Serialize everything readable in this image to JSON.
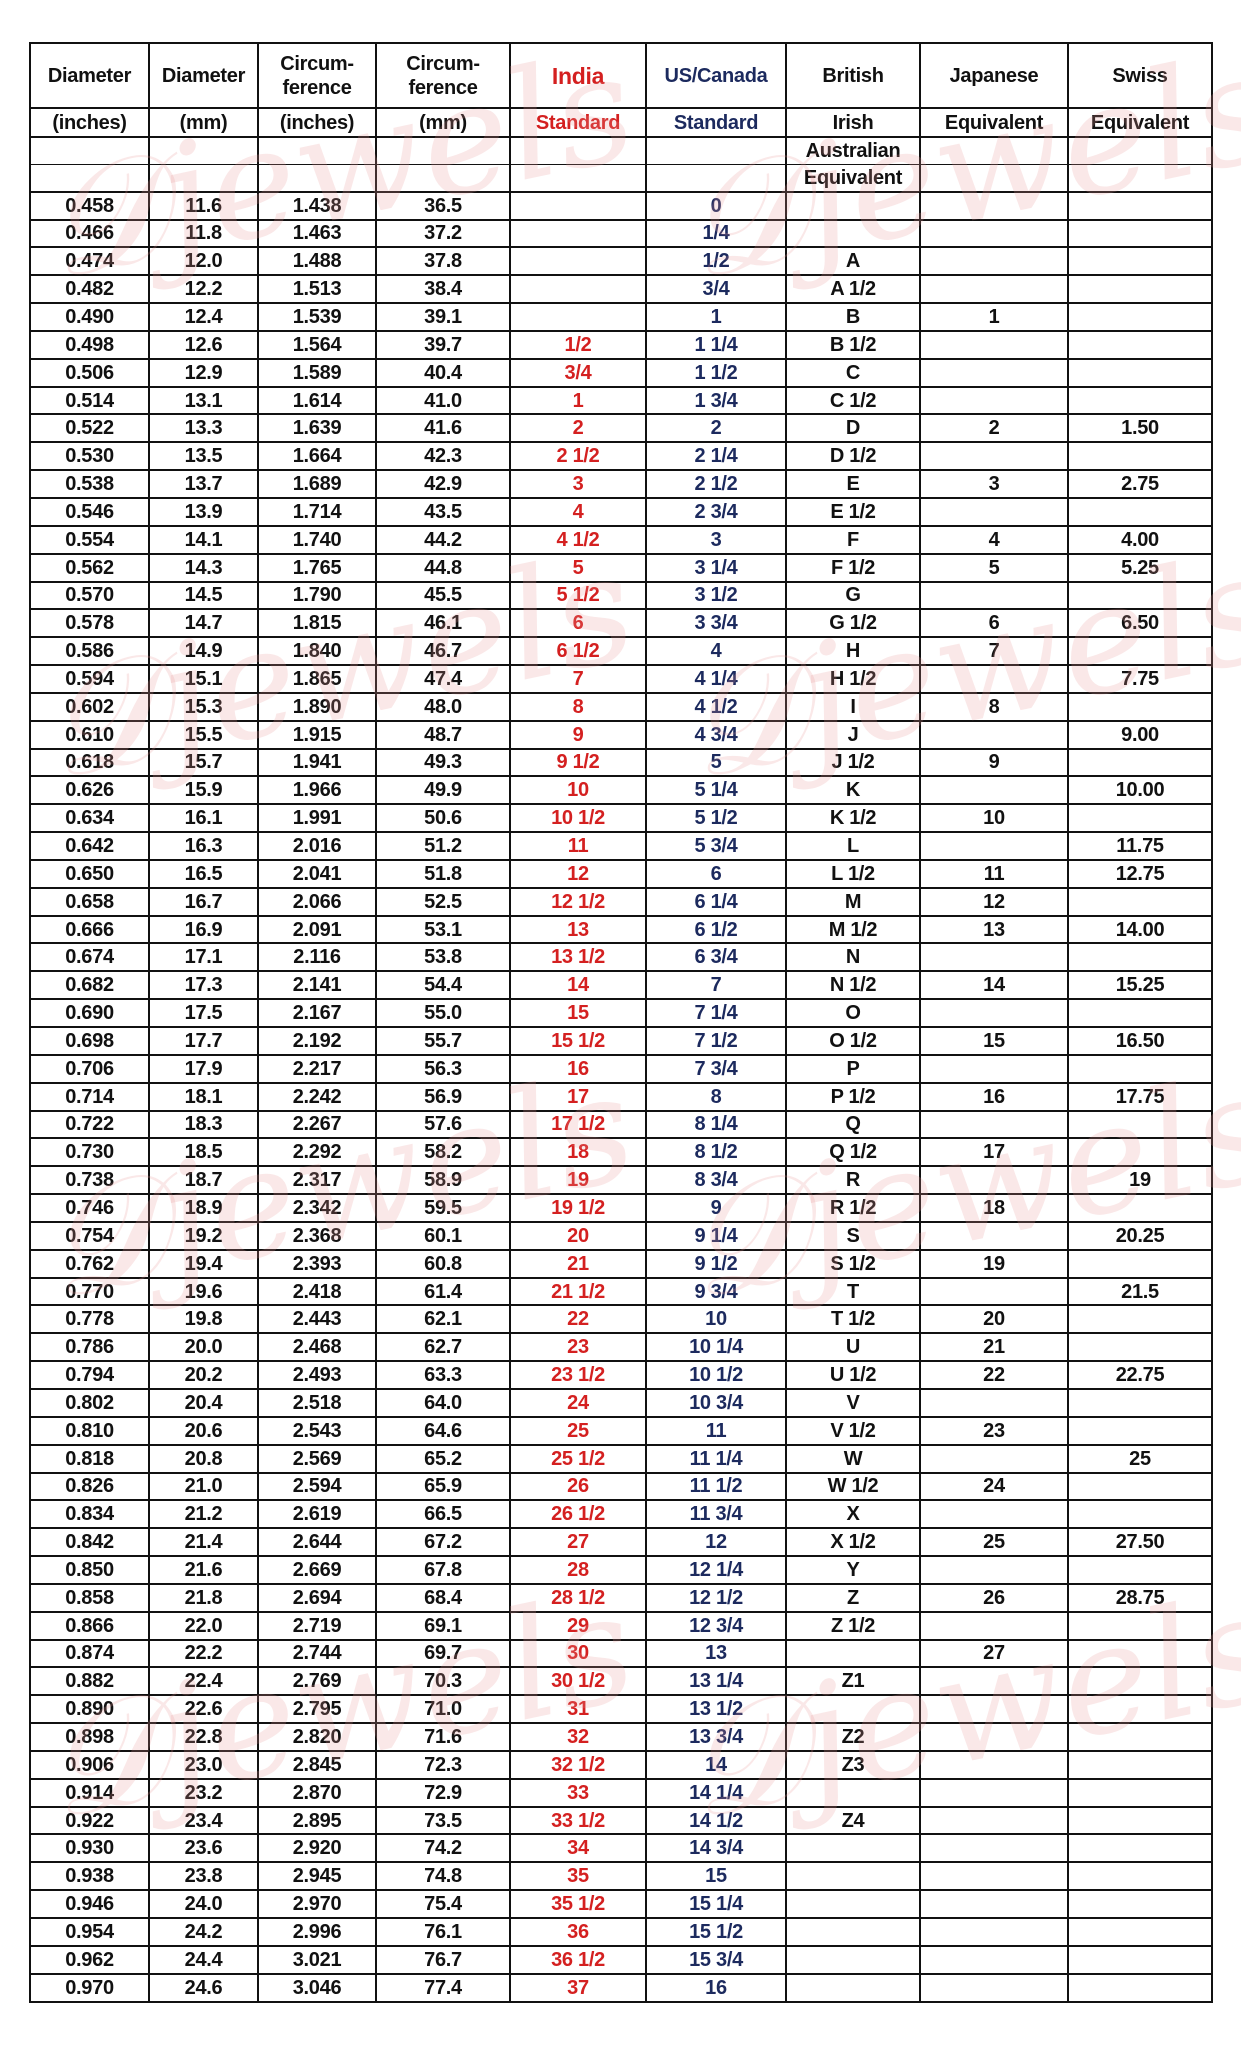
{
  "watermark": "Djewels",
  "colors": {
    "india": "#d42020",
    "us_canada": "#1c2a5e",
    "text": "#111111"
  },
  "headers": {
    "row1": [
      "Diameter",
      "Diameter",
      "Circum-\nference",
      "Circum-\nference",
      "India",
      "US/Canada",
      "British",
      "Japanese",
      "Swiss"
    ],
    "row2": [
      "(inches)",
      "(mm)",
      "(inches)",
      "(mm)",
      "Standard",
      "Standard",
      "Irish",
      "Equivalent",
      "Equivalent"
    ],
    "row3": [
      "",
      "",
      "",
      "",
      "",
      "",
      "Australian",
      "",
      ""
    ],
    "row4": [
      "",
      "",
      "",
      "",
      "",
      "",
      "Equivalent",
      "",
      ""
    ]
  },
  "rows": [
    [
      "0.458",
      "11.6",
      "1.438",
      "36.5",
      "",
      "0",
      "",
      "",
      ""
    ],
    [
      "0.466",
      "11.8",
      "1.463",
      "37.2",
      "",
      "1/4",
      "",
      "",
      ""
    ],
    [
      "0.474",
      "12.0",
      "1.488",
      "37.8",
      "",
      "1/2",
      "A",
      "",
      ""
    ],
    [
      "0.482",
      "12.2",
      "1.513",
      "38.4",
      "",
      "3/4",
      "A 1/2",
      "",
      ""
    ],
    [
      "0.490",
      "12.4",
      "1.539",
      "39.1",
      "",
      "1",
      "B",
      "1",
      ""
    ],
    [
      "0.498",
      "12.6",
      "1.564",
      "39.7",
      "1/2",
      "1 1/4",
      "B 1/2",
      "",
      ""
    ],
    [
      "0.506",
      "12.9",
      "1.589",
      "40.4",
      "3/4",
      "1 1/2",
      "C",
      "",
      ""
    ],
    [
      "0.514",
      "13.1",
      "1.614",
      "41.0",
      "1",
      "1 3/4",
      "C 1/2",
      "",
      ""
    ],
    [
      "0.522",
      "13.3",
      "1.639",
      "41.6",
      "2",
      "2",
      "D",
      "2",
      "1.50"
    ],
    [
      "0.530",
      "13.5",
      "1.664",
      "42.3",
      "2 1/2",
      "2 1/4",
      "D 1/2",
      "",
      ""
    ],
    [
      "0.538",
      "13.7",
      "1.689",
      "42.9",
      "3",
      "2 1/2",
      "E",
      "3",
      "2.75"
    ],
    [
      "0.546",
      "13.9",
      "1.714",
      "43.5",
      "4",
      "2 3/4",
      "E 1/2",
      "",
      ""
    ],
    [
      "0.554",
      "14.1",
      "1.740",
      "44.2",
      "4 1/2",
      "3",
      "F",
      "4",
      "4.00"
    ],
    [
      "0.562",
      "14.3",
      "1.765",
      "44.8",
      "5",
      "3 1/4",
      "F 1/2",
      "5",
      "5.25"
    ],
    [
      "0.570",
      "14.5",
      "1.790",
      "45.5",
      "5 1/2",
      "3 1/2",
      "G",
      "",
      ""
    ],
    [
      "0.578",
      "14.7",
      "1.815",
      "46.1",
      "6",
      "3 3/4",
      "G 1/2",
      "6",
      "6.50"
    ],
    [
      "0.586",
      "14.9",
      "1.840",
      "46.7",
      "6 1/2",
      "4",
      "H",
      "7",
      ""
    ],
    [
      "0.594",
      "15.1",
      "1.865",
      "47.4",
      "7",
      "4 1/4",
      "H 1/2",
      "",
      "7.75"
    ],
    [
      "0.602",
      "15.3",
      "1.890",
      "48.0",
      "8",
      "4 1/2",
      "I",
      "8",
      ""
    ],
    [
      "0.610",
      "15.5",
      "1.915",
      "48.7",
      "9",
      "4 3/4",
      "J",
      "",
      "9.00"
    ],
    [
      "0.618",
      "15.7",
      "1.941",
      "49.3",
      "9 1/2",
      "5",
      "J 1/2",
      "9",
      ""
    ],
    [
      "0.626",
      "15.9",
      "1.966",
      "49.9",
      "10",
      "5 1/4",
      "K",
      "",
      "10.00"
    ],
    [
      "0.634",
      "16.1",
      "1.991",
      "50.6",
      "10 1/2",
      "5 1/2",
      "K 1/2",
      "10",
      ""
    ],
    [
      "0.642",
      "16.3",
      "2.016",
      "51.2",
      "11",
      "5 3/4",
      "L",
      "",
      "11.75"
    ],
    [
      "0.650",
      "16.5",
      "2.041",
      "51.8",
      "12",
      "6",
      "L 1/2",
      "11",
      "12.75"
    ],
    [
      "0.658",
      "16.7",
      "2.066",
      "52.5",
      "12 1/2",
      "6 1/4",
      "M",
      "12",
      ""
    ],
    [
      "0.666",
      "16.9",
      "2.091",
      "53.1",
      "13",
      "6 1/2",
      "M 1/2",
      "13",
      "14.00"
    ],
    [
      "0.674",
      "17.1",
      "2.116",
      "53.8",
      "13 1/2",
      "6 3/4",
      "N",
      "",
      ""
    ],
    [
      "0.682",
      "17.3",
      "2.141",
      "54.4",
      "14",
      "7",
      "N 1/2",
      "14",
      "15.25"
    ],
    [
      "0.690",
      "17.5",
      "2.167",
      "55.0",
      "15",
      "7 1/4",
      "O",
      "",
      ""
    ],
    [
      "0.698",
      "17.7",
      "2.192",
      "55.7",
      "15 1/2",
      "7 1/2",
      "O 1/2",
      "15",
      "16.50"
    ],
    [
      "0.706",
      "17.9",
      "2.217",
      "56.3",
      "16",
      "7 3/4",
      "P",
      "",
      ""
    ],
    [
      "0.714",
      "18.1",
      "2.242",
      "56.9",
      "17",
      "8",
      "P 1/2",
      "16",
      "17.75"
    ],
    [
      "0.722",
      "18.3",
      "2.267",
      "57.6",
      "17 1/2",
      "8 1/4",
      "Q",
      "",
      ""
    ],
    [
      "0.730",
      "18.5",
      "2.292",
      "58.2",
      "18",
      "8 1/2",
      "Q 1/2",
      "17",
      ""
    ],
    [
      "0.738",
      "18.7",
      "2.317",
      "58.9",
      "19",
      "8 3/4",
      "R",
      "",
      "19"
    ],
    [
      "0.746",
      "18.9",
      "2.342",
      "59.5",
      "19 1/2",
      "9",
      "R 1/2",
      "18",
      ""
    ],
    [
      "0.754",
      "19.2",
      "2.368",
      "60.1",
      "20",
      "9 1/4",
      "S",
      "",
      "20.25"
    ],
    [
      "0.762",
      "19.4",
      "2.393",
      "60.8",
      "21",
      "9 1/2",
      "S 1/2",
      "19",
      ""
    ],
    [
      "0.770",
      "19.6",
      "2.418",
      "61.4",
      "21 1/2",
      "9 3/4",
      "T",
      "",
      "21.5"
    ],
    [
      "0.778",
      "19.8",
      "2.443",
      "62.1",
      "22",
      "10",
      "T 1/2",
      "20",
      ""
    ],
    [
      "0.786",
      "20.0",
      "2.468",
      "62.7",
      "23",
      "10 1/4",
      "U",
      "21",
      ""
    ],
    [
      "0.794",
      "20.2",
      "2.493",
      "63.3",
      "23 1/2",
      "10 1/2",
      "U 1/2",
      "22",
      "22.75"
    ],
    [
      "0.802",
      "20.4",
      "2.518",
      "64.0",
      "24",
      "10 3/4",
      "V",
      "",
      ""
    ],
    [
      "0.810",
      "20.6",
      "2.543",
      "64.6",
      "25",
      "11",
      "V 1/2",
      "23",
      ""
    ],
    [
      "0.818",
      "20.8",
      "2.569",
      "65.2",
      "25 1/2",
      "11 1/4",
      "W",
      "",
      "25"
    ],
    [
      "0.826",
      "21.0",
      "2.594",
      "65.9",
      "26",
      "11 1/2",
      "W 1/2",
      "24",
      ""
    ],
    [
      "0.834",
      "21.2",
      "2.619",
      "66.5",
      "26 1/2",
      "11 3/4",
      "X",
      "",
      ""
    ],
    [
      "0.842",
      "21.4",
      "2.644",
      "67.2",
      "27",
      "12",
      "X 1/2",
      "25",
      "27.50"
    ],
    [
      "0.850",
      "21.6",
      "2.669",
      "67.8",
      "28",
      "12 1/4",
      "Y",
      "",
      ""
    ],
    [
      "0.858",
      "21.8",
      "2.694",
      "68.4",
      "28 1/2",
      "12 1/2",
      "Z",
      "26",
      "28.75"
    ],
    [
      "0.866",
      "22.0",
      "2.719",
      "69.1",
      "29",
      "12 3/4",
      "Z 1/2",
      "",
      ""
    ],
    [
      "0.874",
      "22.2",
      "2.744",
      "69.7",
      "30",
      "13",
      "",
      "27",
      ""
    ],
    [
      "0.882",
      "22.4",
      "2.769",
      "70.3",
      "30 1/2",
      "13 1/4",
      "Z1",
      "",
      ""
    ],
    [
      "0.890",
      "22.6",
      "2.795",
      "71.0",
      "31",
      "13 1/2",
      "",
      "",
      ""
    ],
    [
      "0.898",
      "22.8",
      "2.820",
      "71.6",
      "32",
      "13 3/4",
      "Z2",
      "",
      ""
    ],
    [
      "0.906",
      "23.0",
      "2.845",
      "72.3",
      "32 1/2",
      "14",
      "Z3",
      "",
      ""
    ],
    [
      "0.914",
      "23.2",
      "2.870",
      "72.9",
      "33",
      "14 1/4",
      "",
      "",
      ""
    ],
    [
      "0.922",
      "23.4",
      "2.895",
      "73.5",
      "33 1/2",
      "14 1/2",
      "Z4",
      "",
      ""
    ],
    [
      "0.930",
      "23.6",
      "2.920",
      "74.2",
      "34",
      "14 3/4",
      "",
      "",
      ""
    ],
    [
      "0.938",
      "23.8",
      "2.945",
      "74.8",
      "35",
      "15",
      "",
      "",
      ""
    ],
    [
      "0.946",
      "24.0",
      "2.970",
      "75.4",
      "35 1/2",
      "15 1/4",
      "",
      "",
      ""
    ],
    [
      "0.954",
      "24.2",
      "2.996",
      "76.1",
      "36",
      "15 1/2",
      "",
      "",
      ""
    ],
    [
      "0.962",
      "24.4",
      "3.021",
      "76.7",
      "36 1/2",
      "15 3/4",
      "",
      "",
      ""
    ],
    [
      "0.970",
      "24.6",
      "3.046",
      "77.4",
      "37",
      "16",
      "",
      "",
      ""
    ]
  ]
}
